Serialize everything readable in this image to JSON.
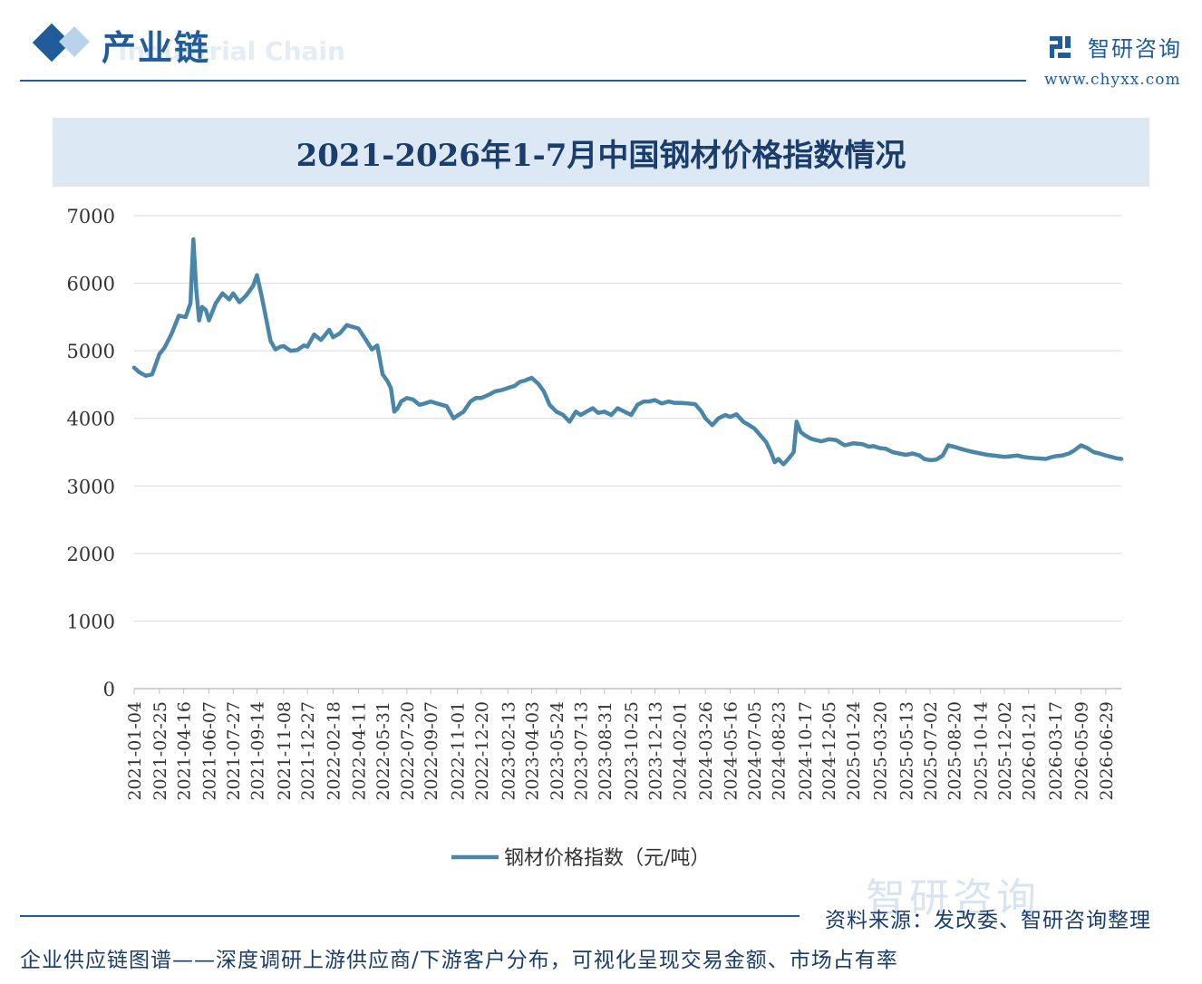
{
  "header": {
    "title": "产业链",
    "subtitle": "Industrial Chain",
    "brand_name": "智研咨询",
    "brand_url": "www.chyxx.com"
  },
  "colors": {
    "accent": "#1f5c99",
    "series": "#4a86a8",
    "band": "#dce9f5"
  },
  "chart_data": {
    "type": "line",
    "title": "2021-2026年1-7月中国钢材价格指数情况",
    "ylim": [
      0,
      7000
    ],
    "yticks": [
      0,
      1000,
      2000,
      3000,
      4000,
      5000,
      6000,
      7000
    ],
    "grid": true,
    "legend_position": "bottom",
    "xtick_labels": [
      "2021-01-04",
      "2021-02-25",
      "2021-04-16",
      "2021-06-07",
      "2021-07-27",
      "2021-09-14",
      "2021-11-08",
      "2021-12-27",
      "2022-02-18",
      "2022-04-11",
      "2022-05-31",
      "2022-07-20",
      "2022-09-07",
      "2022-11-01",
      "2022-12-20",
      "2023-02-13",
      "2023-04-03",
      "2023-05-24",
      "2023-07-13",
      "2023-08-31",
      "2023-10-25",
      "2023-12-13",
      "2024-02-01",
      "2024-03-26",
      "2024-05-16",
      "2024-07-05",
      "2024-08-23",
      "2024-10-17",
      "2024-12-05",
      "2025-01-24",
      "2025-03-20",
      "2025-05-13",
      "2025-07-02",
      "2025-08-20",
      "2025-10-14",
      "2025-12-02",
      "2026-01-21",
      "2026-03-17",
      "2026-05-09",
      "2026-06-29"
    ],
    "series": [
      {
        "name": "钢材价格指数（元/吨）",
        "x": [
          "2021-01-04",
          "2021-01-15",
          "2021-01-28",
          "2021-02-10",
          "2021-02-25",
          "2021-03-08",
          "2021-03-22",
          "2021-04-06",
          "2021-04-20",
          "2021-04-30",
          "2021-05-06",
          "2021-05-12",
          "2021-05-18",
          "2021-05-24",
          "2021-06-01",
          "2021-06-07",
          "2021-06-21",
          "2021-07-05",
          "2021-07-19",
          "2021-07-27",
          "2021-08-09",
          "2021-08-23",
          "2021-09-06",
          "2021-09-14",
          "2021-09-24",
          "2021-10-12",
          "2021-10-22",
          "2021-11-01",
          "2021-11-08",
          "2021-11-22",
          "2021-12-06",
          "2021-12-20",
          "2021-12-27",
          "2022-01-10",
          "2022-01-24",
          "2022-02-10",
          "2022-02-18",
          "2022-03-04",
          "2022-03-18",
          "2022-04-01",
          "2022-04-11",
          "2022-04-25",
          "2022-05-09",
          "2022-05-20",
          "2022-05-31",
          "2022-06-10",
          "2022-06-17",
          "2022-06-24",
          "2022-07-01",
          "2022-07-08",
          "2022-07-20",
          "2022-08-01",
          "2022-08-15",
          "2022-08-26",
          "2022-09-07",
          "2022-09-20",
          "2022-10-10",
          "2022-10-24",
          "2022-11-01",
          "2022-11-14",
          "2022-11-28",
          "2022-12-09",
          "2022-12-20",
          "2023-01-05",
          "2023-01-18",
          "2023-02-01",
          "2023-02-13",
          "2023-02-27",
          "2023-03-10",
          "2023-03-20",
          "2023-04-03",
          "2023-04-17",
          "2023-04-28",
          "2023-05-10",
          "2023-05-24",
          "2023-06-07",
          "2023-06-20",
          "2023-07-03",
          "2023-07-13",
          "2023-07-25",
          "2023-08-07",
          "2023-08-18",
          "2023-08-31",
          "2023-09-14",
          "2023-09-27",
          "2023-10-11",
          "2023-10-25",
          "2023-11-07",
          "2023-11-20",
          "2023-12-01",
          "2023-12-13",
          "2023-12-27",
          "2024-01-10",
          "2024-01-22",
          "2024-02-01",
          "2024-02-20",
          "2024-03-05",
          "2024-03-18",
          "2024-03-26",
          "2024-04-09",
          "2024-04-22",
          "2024-05-06",
          "2024-05-16",
          "2024-05-29",
          "2024-06-12",
          "2024-06-24",
          "2024-07-05",
          "2024-07-17",
          "2024-07-29",
          "2024-08-08",
          "2024-08-16",
          "2024-08-23",
          "2024-09-03",
          "2024-09-13",
          "2024-09-24",
          "2024-09-30",
          "2024-10-08",
          "2024-10-17",
          "2024-10-29",
          "2024-11-08",
          "2024-11-20",
          "2024-12-05",
          "2024-12-20",
          "2025-01-07",
          "2025-01-24",
          "2025-02-12",
          "2025-02-26",
          "2025-03-07",
          "2025-03-20",
          "2025-04-02",
          "2025-04-16",
          "2025-04-29",
          "2025-05-13",
          "2025-05-27",
          "2025-06-10",
          "2025-06-20",
          "2025-07-02",
          "2025-07-15",
          "2025-07-28",
          "2025-08-08",
          "2025-08-20",
          "2025-09-03",
          "2025-09-18",
          "2025-09-30",
          "2025-10-14",
          "2025-10-28",
          "2025-11-10",
          "2025-11-21",
          "2025-12-02",
          "2025-12-16",
          "2025-12-29",
          "2026-01-09",
          "2026-01-21",
          "2026-02-04",
          "2026-02-25",
          "2026-03-06",
          "2026-03-17",
          "2026-03-31",
          "2026-04-14",
          "2026-04-24",
          "2026-05-09",
          "2026-05-22",
          "2026-06-04",
          "2026-06-16",
          "2026-06-29",
          "2026-07-10",
          "2026-07-20",
          "2026-07-31"
        ],
        "values": [
          4750,
          4680,
          4630,
          4650,
          4950,
          5050,
          5250,
          5520,
          5500,
          5700,
          6650,
          5900,
          5450,
          5650,
          5600,
          5450,
          5700,
          5850,
          5760,
          5850,
          5720,
          5820,
          5960,
          6120,
          5800,
          5150,
          5020,
          5060,
          5070,
          5000,
          5010,
          5080,
          5060,
          5240,
          5160,
          5310,
          5200,
          5260,
          5380,
          5350,
          5330,
          5180,
          5020,
          5080,
          4650,
          4550,
          4450,
          4100,
          4150,
          4250,
          4300,
          4280,
          4200,
          4220,
          4250,
          4220,
          4180,
          4000,
          4040,
          4100,
          4250,
          4300,
          4300,
          4350,
          4400,
          4420,
          4450,
          4480,
          4540,
          4560,
          4600,
          4510,
          4400,
          4200,
          4100,
          4050,
          3950,
          4100,
          4050,
          4100,
          4150,
          4080,
          4100,
          4050,
          4150,
          4100,
          4050,
          4200,
          4250,
          4250,
          4270,
          4220,
          4250,
          4230,
          4230,
          4220,
          4210,
          4100,
          4000,
          3900,
          4000,
          4050,
          4020,
          4060,
          3950,
          3900,
          3850,
          3750,
          3650,
          3500,
          3350,
          3400,
          3320,
          3400,
          3500,
          3950,
          3800,
          3750,
          3700,
          3680,
          3660,
          3690,
          3680,
          3600,
          3630,
          3620,
          3580,
          3590,
          3560,
          3550,
          3500,
          3480,
          3460,
          3480,
          3450,
          3400,
          3380,
          3390,
          3450,
          3600,
          3580,
          3550,
          3520,
          3500,
          3480,
          3460,
          3450,
          3440,
          3430,
          3440,
          3450,
          3430,
          3420,
          3410,
          3400,
          3420,
          3440,
          3450,
          3480,
          3520,
          3600,
          3560,
          3500,
          3480,
          3450,
          3430,
          3410,
          3400
        ]
      }
    ]
  },
  "footer": {
    "source": "资料来源：发改委、智研咨询整理",
    "tagline": "企业供应链图谱——深度调研上游供应商/下游客户分布，可视化呈现交易金额、市场占有率"
  },
  "watermark": "智研咨询"
}
